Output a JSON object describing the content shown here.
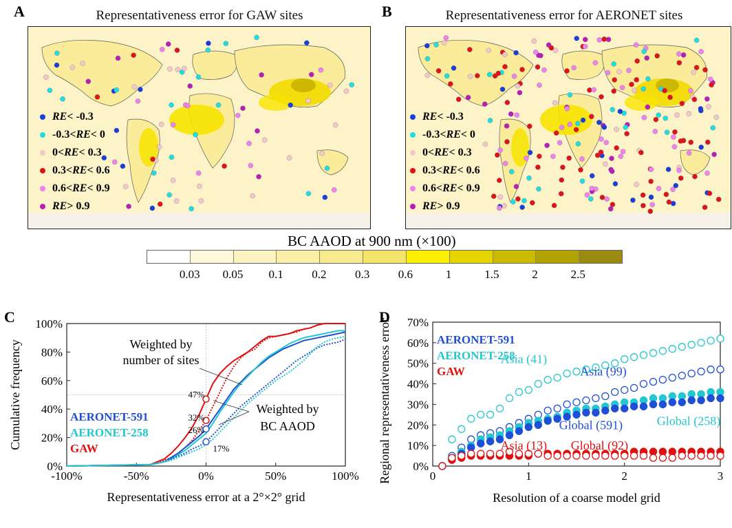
{
  "panels": {
    "a": {
      "letter": "A",
      "title": "Representativeness error for GAW sites"
    },
    "b": {
      "letter": "B",
      "title": "Representativeness error for AERONET sites"
    },
    "c": {
      "letter": "C"
    },
    "d": {
      "letter": "D"
    }
  },
  "re_legend": [
    {
      "label": "RE< -0.3",
      "color": "#1a3ede"
    },
    {
      "label": "-0.3<RE< 0",
      "color": "#22dde0"
    },
    {
      "label": "0<RE< 0.3",
      "color": "#f2c8cc"
    },
    {
      "label": "0.3<RE< 0.6",
      "color": "#e0121a"
    },
    {
      "label": "0.6<RE< 0.9",
      "color": "#ee82ee"
    },
    {
      "label": "RE> 0.9",
      "color": "#b81eb8"
    }
  ],
  "colorbar": {
    "title": "BC AAOD at 900 nm (×100)",
    "tick_labels": [
      "0.03",
      "0.05",
      "0.1",
      "0.2",
      "0.3",
      "0.6",
      "1",
      "1.5",
      "2",
      "2.5"
    ],
    "colors": [
      "#ffffff",
      "#fdf8dc",
      "#fcf3c2",
      "#faeea8",
      "#f8ea8e",
      "#f5e46a",
      "#fcef00",
      "#e5d400",
      "#ccbb00",
      "#b2a300",
      "#9a8b10"
    ]
  },
  "chart_data": [
    {
      "type": "line",
      "panel": "C",
      "xlabel": "Representativeness error at a 2°×2° grid",
      "ylabel": "Cumulative frequency",
      "xlim": [
        -100,
        100
      ],
      "ylim": [
        0,
        100
      ],
      "x_ticks": [
        "-100%",
        "-50%",
        "0%",
        "50%",
        "100%"
      ],
      "y_ticks": [
        "0%",
        "20%",
        "40%",
        "60%",
        "80%",
        "100%"
      ],
      "legend": [
        {
          "label": "AERONET-591",
          "color": "#1f4fd6"
        },
        {
          "label": "AERONET-258",
          "color": "#22c7cf"
        },
        {
          "label": "GAW",
          "color": "#e01010"
        }
      ],
      "series": [
        {
          "name": "GAW",
          "color": "#e01010",
          "style": "solid",
          "x": [
            -100,
            -40,
            -35,
            -30,
            -25,
            -20,
            -15,
            -10,
            -5,
            0,
            5,
            10,
            15,
            20,
            25,
            30,
            35,
            40,
            45,
            50,
            55,
            60,
            65,
            70,
            75,
            80,
            85,
            90,
            95,
            100
          ],
          "y": [
            0,
            1,
            3,
            5,
            9,
            14,
            20,
            27,
            36,
            47,
            58,
            65,
            70,
            74,
            77,
            80,
            84,
            88,
            91,
            91,
            92,
            93,
            95,
            96,
            97,
            99,
            100,
            100,
            100,
            100
          ]
        },
        {
          "name": "GAW",
          "color": "#e01010",
          "style": "dotted",
          "x": [
            -100,
            -40,
            -35,
            -30,
            -25,
            -20,
            -15,
            -10,
            -5,
            0,
            5,
            10,
            15,
            20,
            25,
            30,
            35,
            40,
            45,
            50,
            55,
            60,
            65,
            70,
            75,
            80,
            85,
            90,
            95,
            100
          ],
          "y": [
            0,
            1,
            2,
            4,
            6,
            9,
            13,
            18,
            25,
            32,
            42,
            52,
            62,
            70,
            76,
            80,
            82,
            87,
            90,
            91,
            92,
            93,
            94,
            96,
            97,
            99,
            100,
            100,
            100,
            100
          ]
        },
        {
          "name": "AERONET-591",
          "color": "#1f4fd6",
          "style": "solid",
          "x": [
            -100,
            -40,
            -35,
            -30,
            -25,
            -20,
            -15,
            -10,
            -5,
            0,
            5,
            10,
            15,
            20,
            25,
            30,
            35,
            40,
            45,
            50,
            55,
            60,
            65,
            70,
            75,
            80,
            85,
            90,
            95,
            100
          ],
          "y": [
            0,
            1,
            2,
            3,
            6,
            9,
            13,
            17,
            21,
            26,
            33,
            40,
            47,
            54,
            59,
            64,
            68,
            72,
            76,
            79,
            82,
            84,
            86,
            88,
            89,
            90,
            91,
            92,
            93,
            94
          ]
        },
        {
          "name": "AERONET-258",
          "color": "#22c7cf",
          "style": "solid",
          "x": [
            -100,
            -40,
            -35,
            -30,
            -25,
            -20,
            -15,
            -10,
            -5,
            0,
            5,
            10,
            15,
            20,
            25,
            30,
            35,
            40,
            45,
            50,
            55,
            60,
            65,
            70,
            75,
            80,
            85,
            90,
            95,
            100
          ],
          "y": [
            0,
            1,
            2,
            3,
            5,
            8,
            11,
            15,
            19,
            23,
            30,
            38,
            45,
            52,
            58,
            63,
            68,
            73,
            77,
            80,
            83,
            86,
            88,
            90,
            91,
            92,
            93,
            94,
            95,
            95
          ]
        },
        {
          "name": "AERONET-591",
          "color": "#1f4fd6",
          "style": "dotted",
          "x": [
            -100,
            -40,
            -35,
            -30,
            -25,
            -20,
            -15,
            -10,
            -5,
            0,
            5,
            10,
            15,
            20,
            25,
            30,
            35,
            40,
            45,
            50,
            55,
            60,
            65,
            70,
            75,
            80,
            85,
            90,
            95,
            100
          ],
          "y": [
            0,
            1,
            2,
            3,
            5,
            7,
            9,
            12,
            14,
            17,
            22,
            27,
            32,
            37,
            42,
            46,
            50,
            54,
            58,
            62,
            66,
            70,
            74,
            77,
            80,
            83,
            85,
            86,
            87,
            89
          ]
        },
        {
          "name": "AERONET-258",
          "color": "#22c7cf",
          "style": "dotted",
          "x": [
            -100,
            -40,
            -35,
            -30,
            -25,
            -20,
            -15,
            -10,
            -5,
            0,
            5,
            10,
            15,
            20,
            25,
            30,
            35,
            40,
            45,
            50,
            55,
            60,
            65,
            70,
            75,
            80,
            85,
            90,
            95,
            100
          ],
          "y": [
            0,
            1,
            2,
            3,
            4,
            6,
            8,
            10,
            12,
            15,
            19,
            24,
            29,
            34,
            39,
            44,
            48,
            52,
            56,
            60,
            63,
            66,
            70,
            74,
            79,
            84,
            87,
            89,
            90,
            91
          ]
        }
      ],
      "markers": [
        {
          "x": 0,
          "y": 47,
          "label": "47%",
          "color": "#e01010"
        },
        {
          "x": 0,
          "y": 32,
          "label": "32%",
          "color": "#e01010"
        },
        {
          "x": 0,
          "y": 26,
          "label": "26%",
          "color": "#1f4fd6"
        },
        {
          "x": 0,
          "y": 17,
          "label": "17%",
          "color": "#1f4fd6"
        }
      ],
      "annotations": {
        "sites": [
          "Weighted by",
          "number of sites"
        ],
        "aaod": [
          "Weighted by",
          "BC AAOD"
        ]
      }
    },
    {
      "type": "scatter",
      "panel": "D",
      "xlabel": "Resolution of a coarse model grid",
      "ylabel": "Regional representativeness error",
      "xlim": [
        0,
        3
      ],
      "ylim": [
        0,
        70
      ],
      "x_ticks": [
        "0",
        "1",
        "2",
        "3"
      ],
      "y_ticks": [
        "0%",
        "10%",
        "20%",
        "30%",
        "40%",
        "50%",
        "60%",
        "70%"
      ],
      "legend": [
        {
          "label": "AERONET-591",
          "color": "#1f4fd6"
        },
        {
          "label": "AERONET-258",
          "color": "#22c7cf"
        },
        {
          "label": "GAW",
          "color": "#e01010"
        }
      ],
      "x": [
        0.1,
        0.2,
        0.3,
        0.4,
        0.5,
        0.6,
        0.7,
        0.8,
        0.9,
        1.0,
        1.1,
        1.2,
        1.3,
        1.4,
        1.5,
        1.6,
        1.7,
        1.8,
        1.9,
        2.0,
        2.1,
        2.2,
        2.3,
        2.4,
        2.5,
        2.6,
        2.7,
        2.8,
        2.9,
        3.0
      ],
      "series": [
        {
          "name": "Asia (41)",
          "color": "#22c7cf",
          "filled": false,
          "y": [
            0,
            13,
            18,
            23,
            25,
            25,
            28,
            33,
            36,
            37,
            40,
            42,
            43,
            45,
            46,
            47,
            48,
            49,
            50,
            52,
            53,
            54,
            55,
            56,
            57,
            58,
            59,
            60,
            61,
            62
          ]
        },
        {
          "name": "Asia (99)",
          "color": "#1f4fd6",
          "filled": false,
          "y": [
            0,
            5,
            9,
            13,
            15,
            16,
            17,
            19,
            21,
            23,
            25,
            27,
            28,
            30,
            31,
            32,
            33,
            34,
            36,
            37,
            38,
            40,
            41,
            42,
            43,
            44,
            45,
            46,
            47,
            47
          ]
        },
        {
          "name": "Global (258)",
          "color": "#22c7cf",
          "filled": true,
          "y": [
            0,
            4,
            7,
            10,
            13,
            14,
            15,
            17,
            19,
            21,
            22,
            23,
            24,
            26,
            27,
            28,
            28,
            29,
            30,
            31,
            31,
            32,
            33,
            33,
            34,
            34,
            35,
            35,
            36,
            36
          ]
        },
        {
          "name": "Global (591)",
          "color": "#1f4fd6",
          "filled": true,
          "y": [
            0,
            3,
            6,
            9,
            11,
            12,
            13,
            15,
            17,
            19,
            20,
            22,
            23,
            24,
            25,
            26,
            26,
            27,
            28,
            28,
            29,
            29,
            30,
            30,
            31,
            31,
            32,
            32,
            33,
            33
          ]
        },
        {
          "name": "Global (92)",
          "color": "#e01010",
          "filled": true,
          "y": [
            0,
            3,
            4,
            5,
            5,
            5,
            5,
            5,
            5,
            5,
            6,
            6,
            6,
            6,
            6,
            6,
            6,
            6,
            6,
            6,
            7,
            7,
            7,
            7,
            7,
            7,
            7,
            7,
            7,
            7
          ]
        },
        {
          "name": "Asia (13)",
          "color": "#e01010",
          "filled": false,
          "y": [
            0,
            4,
            5,
            6,
            6,
            6,
            6,
            7,
            6,
            6,
            6,
            5,
            5,
            5,
            5,
            5,
            5,
            5,
            5,
            5,
            5,
            5,
            4,
            4,
            4,
            5,
            5,
            5,
            5,
            5
          ]
        }
      ],
      "labels": [
        {
          "text": "Asia (41)",
          "color": "#22c7cf",
          "x": 0.95,
          "y": 50
        },
        {
          "text": "Asia (99)",
          "color": "#1f4fd6",
          "x": 1.78,
          "y": 44
        },
        {
          "text": "Global (591)",
          "color": "#1f4fd6",
          "x": 1.65,
          "y": 18
        },
        {
          "text": "Global (258)",
          "color": "#22c7cf",
          "x": 2.67,
          "y": 20
        },
        {
          "text": "Asia (13)",
          "color": "#e01010",
          "x": 0.95,
          "y": 8
        },
        {
          "text": "Global (92)",
          "color": "#e01010",
          "x": 1.74,
          "y": 8
        }
      ]
    }
  ]
}
